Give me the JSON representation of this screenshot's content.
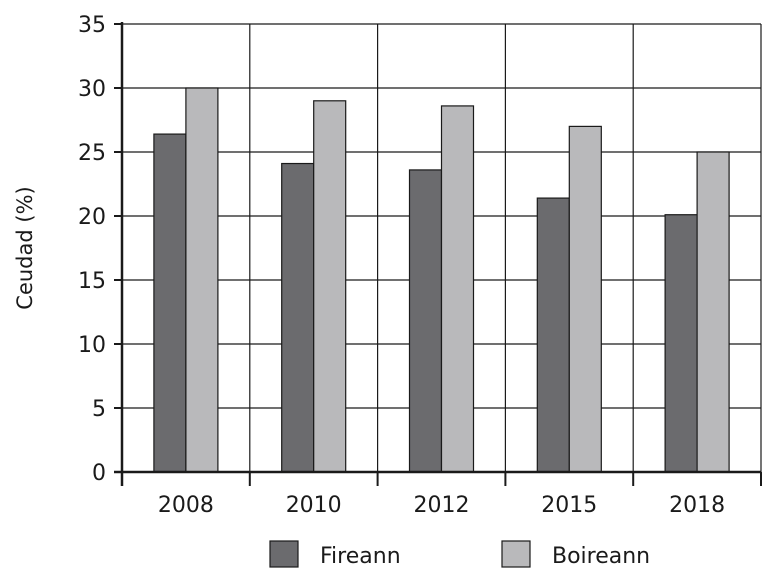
{
  "chart_data": {
    "type": "bar",
    "categories": [
      "2008",
      "2010",
      "2012",
      "2015",
      "2018"
    ],
    "series": [
      {
        "name": "Fireann",
        "color": "#6b6b6e",
        "values": [
          26.4,
          24.1,
          23.6,
          21.4,
          20.1
        ]
      },
      {
        "name": "Boireann",
        "color": "#b9b9bb",
        "values": [
          30.0,
          29.0,
          28.6,
          27.0,
          25.0
        ]
      }
    ],
    "title": "",
    "xlabel": "",
    "ylabel": "Ceudad (%)",
    "ylim": [
      0,
      35
    ],
    "yticks": [
      0,
      5,
      10,
      15,
      20,
      25,
      30,
      35
    ],
    "grid": true,
    "legend_position": "bottom"
  }
}
